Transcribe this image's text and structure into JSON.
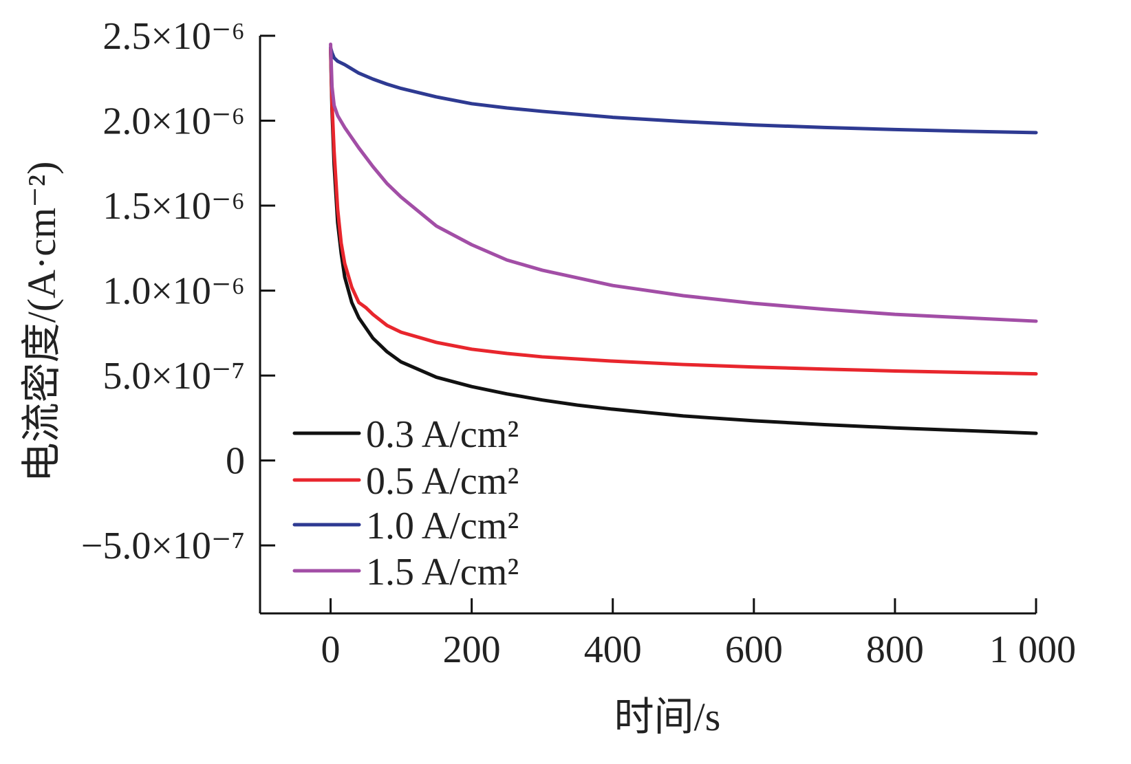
{
  "chart_data": {
    "type": "line",
    "title": "",
    "xlabel": "时间/s",
    "ylabel": "电流密度/(A·cm⁻²)",
    "xlim": [
      -100,
      1000
    ],
    "ylim": [
      -9e-07,
      2.5e-06
    ],
    "x_ticks": [
      {
        "value": 0,
        "label": "0"
      },
      {
        "value": 200,
        "label": "200"
      },
      {
        "value": 400,
        "label": "400"
      },
      {
        "value": 600,
        "label": "600"
      },
      {
        "value": 800,
        "label": "800"
      },
      {
        "value": 1000,
        "label": "1 000"
      }
    ],
    "y_ticks": [
      {
        "value": -5e-07,
        "label": "−5.0×10⁻⁷"
      },
      {
        "value": 0,
        "label": "0"
      },
      {
        "value": 5e-07,
        "label": "5.0×10⁻⁷"
      },
      {
        "value": 1e-06,
        "label": "1.0×10⁻⁶"
      },
      {
        "value": 1.5e-06,
        "label": "1.5×10⁻⁶"
      },
      {
        "value": 2e-06,
        "label": "2.0×10⁻⁶"
      },
      {
        "value": 2.5e-06,
        "label": "2.5×10⁻⁶"
      }
    ],
    "grid": false,
    "legend_position": "bottom-left",
    "series": [
      {
        "name": "0.3 A/cm²",
        "color": "#111111",
        "x": [
          0,
          2,
          5,
          10,
          15,
          20,
          30,
          40,
          60,
          80,
          100,
          150,
          200,
          250,
          300,
          350,
          400,
          450,
          500,
          600,
          700,
          800,
          900,
          1000
        ],
        "y": [
          2.42e-06,
          2.06e-06,
          1.74e-06,
          1.4e-06,
          1.22e-06,
          1.08e-06,
          9.3e-07,
          8.4e-07,
          7.2e-07,
          6.4e-07,
          5.8e-07,
          4.9e-07,
          4.35e-07,
          3.92e-07,
          3.56e-07,
          3.26e-07,
          3.02e-07,
          2.82e-07,
          2.62e-07,
          2.34e-07,
          2.11e-07,
          1.92e-07,
          1.76e-07,
          1.6e-07
        ]
      },
      {
        "name": "0.5 A/cm²",
        "color": "#e8262d",
        "x": [
          0,
          2,
          5,
          10,
          15,
          20,
          30,
          40,
          50,
          60,
          80,
          100,
          150,
          200,
          250,
          300,
          400,
          500,
          600,
          700,
          800,
          900,
          1000
        ],
        "y": [
          2.43e-06,
          2.1e-06,
          1.82e-06,
          1.48e-06,
          1.28e-06,
          1.16e-06,
          1.02e-06,
          9.3e-07,
          9e-07,
          8.6e-07,
          7.95e-07,
          7.55e-07,
          6.95e-07,
          6.55e-07,
          6.3e-07,
          6.1e-07,
          5.85e-07,
          5.65e-07,
          5.5e-07,
          5.38e-07,
          5.27e-07,
          5.18e-07,
          5.1e-07
        ]
      },
      {
        "name": "1.0 A/cm²",
        "color": "#2e3a92",
        "x": [
          0,
          2,
          5,
          10,
          20,
          40,
          60,
          80,
          100,
          150,
          200,
          250,
          300,
          400,
          500,
          600,
          700,
          800,
          900,
          1000
        ],
        "y": [
          2.43e-06,
          2.4e-06,
          2.37e-06,
          2.35e-06,
          2.33e-06,
          2.28e-06,
          2.245e-06,
          2.215e-06,
          2.19e-06,
          2.14e-06,
          2.1e-06,
          2.075e-06,
          2.055e-06,
          2.02e-06,
          1.995e-06,
          1.975e-06,
          1.96e-06,
          1.948e-06,
          1.938e-06,
          1.93e-06
        ]
      },
      {
        "name": "1.5 A/cm²",
        "color": "#a24ea6",
        "x": [
          0,
          2,
          5,
          10,
          20,
          40,
          60,
          80,
          100,
          150,
          200,
          250,
          300,
          400,
          500,
          600,
          700,
          800,
          900,
          1000
        ],
        "y": [
          2.45e-06,
          2.2e-06,
          2.09e-06,
          2.03e-06,
          1.96e-06,
          1.84e-06,
          1.73e-06,
          1.63e-06,
          1.55e-06,
          1.38e-06,
          1.27e-06,
          1.18e-06,
          1.12e-06,
          1.03e-06,
          9.7e-07,
          9.25e-07,
          8.9e-07,
          8.6e-07,
          8.4e-07,
          8.2e-07
        ]
      }
    ]
  }
}
